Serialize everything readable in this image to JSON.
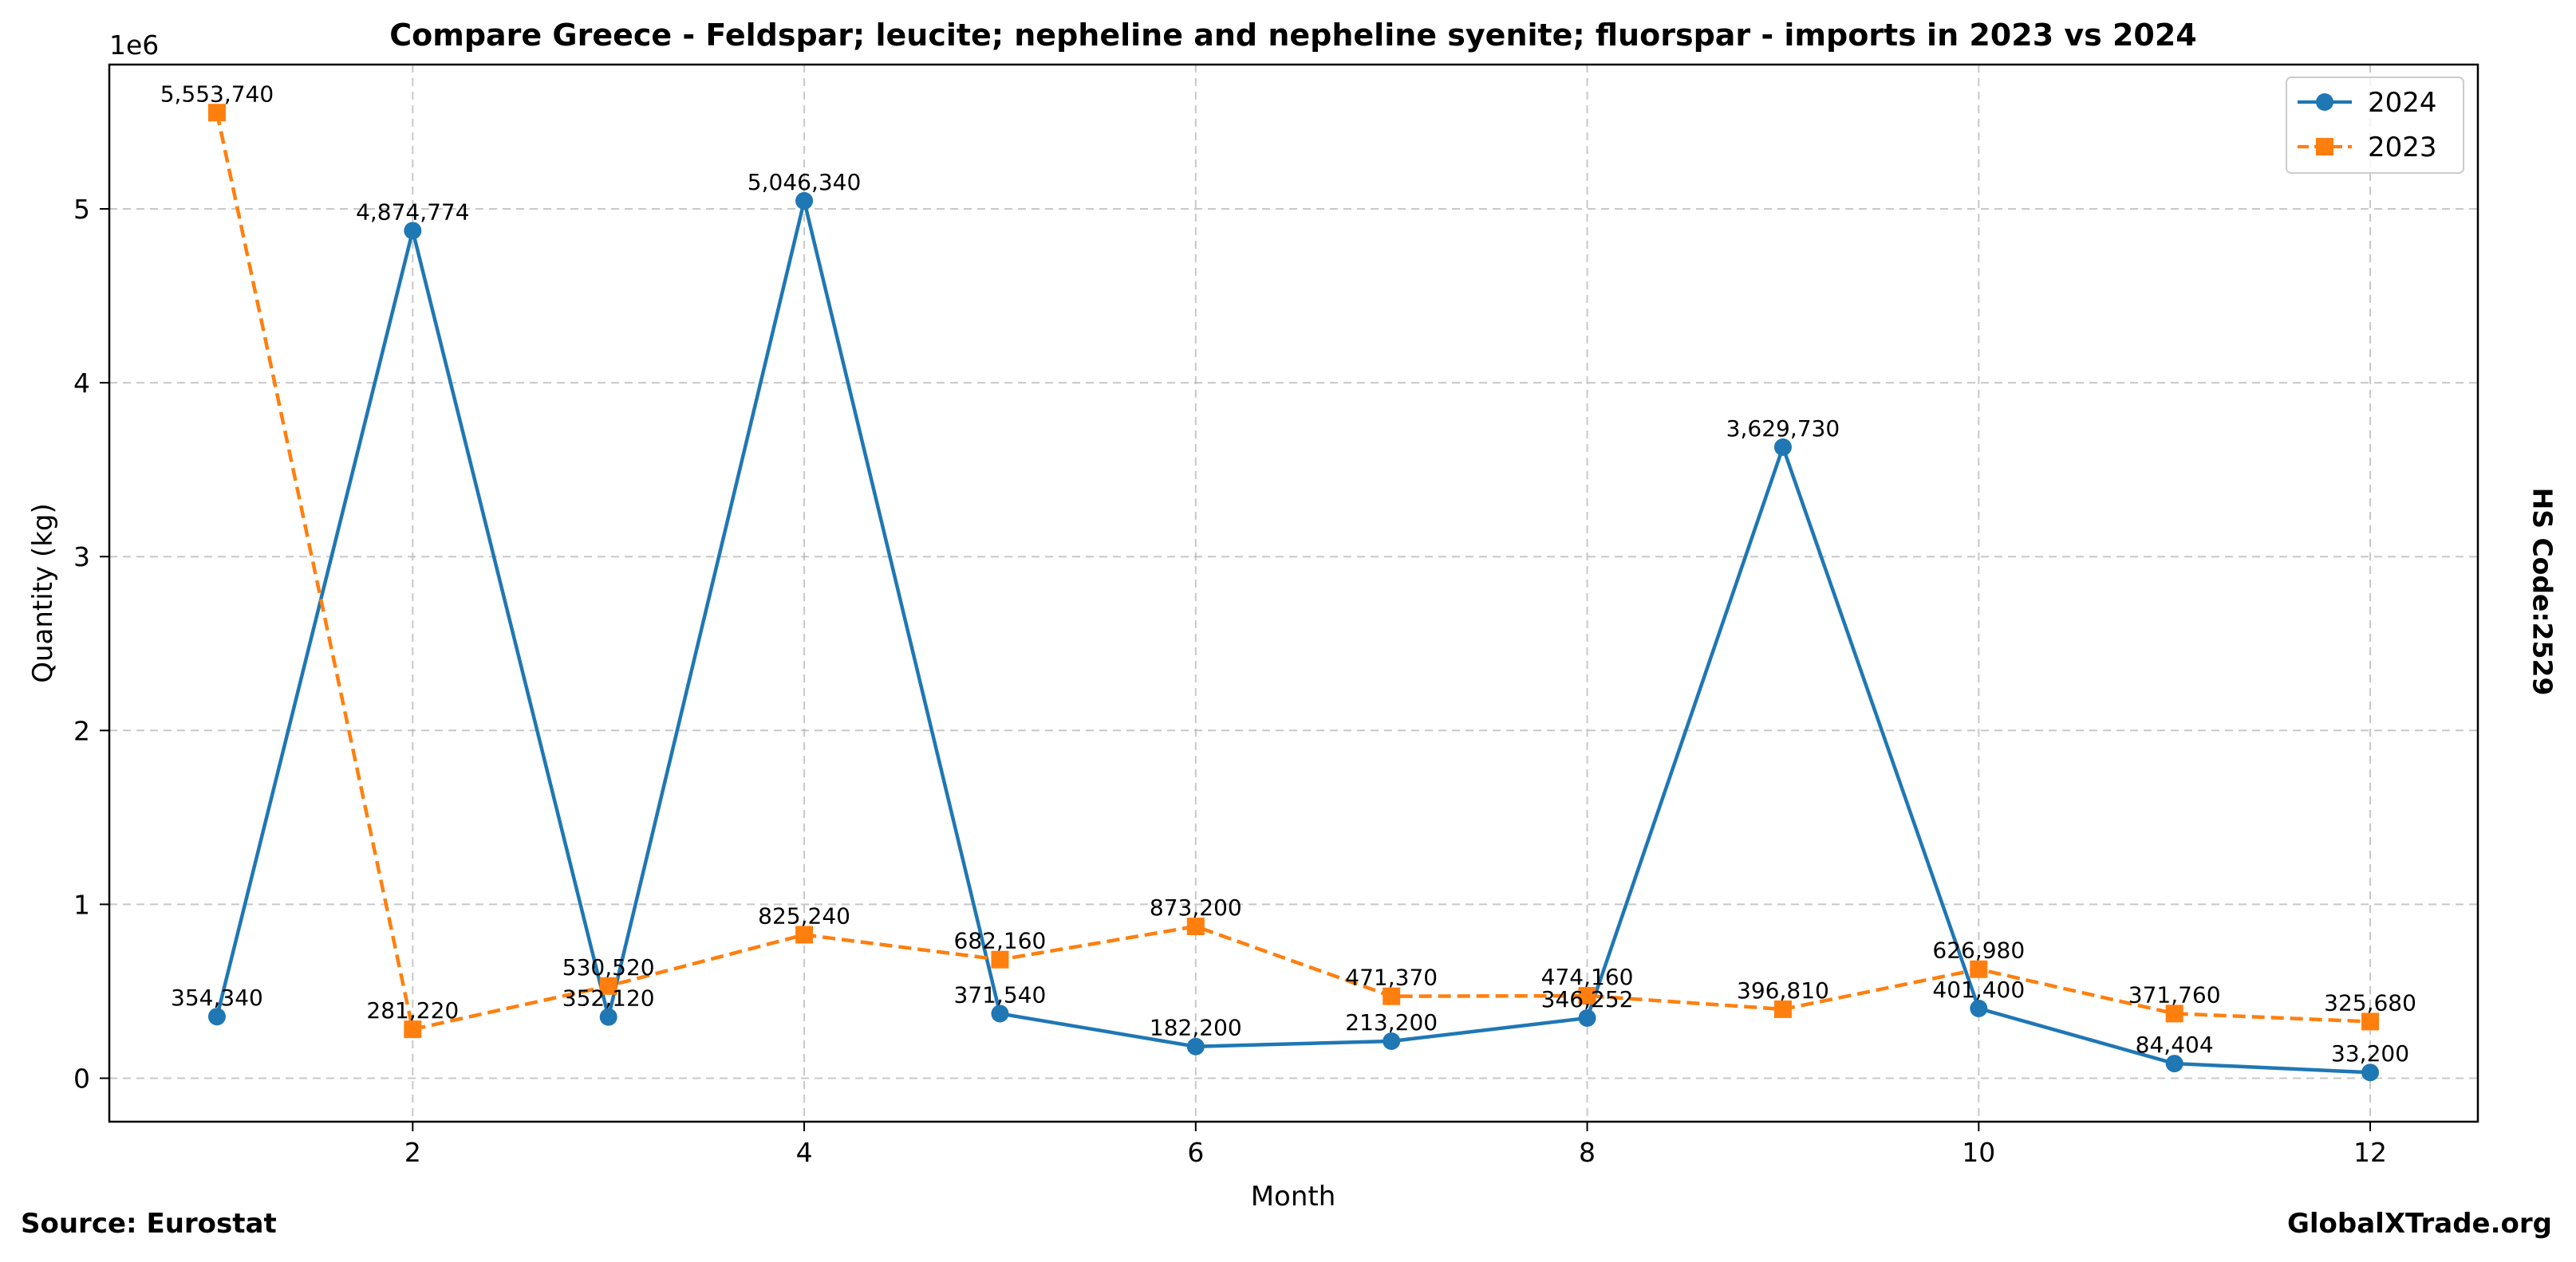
{
  "chart_data": {
    "type": "line",
    "title": "Compare Greece - Feldspar; leucite; nepheline and nepheline syenite; fluorspar - imports in 2023 vs 2024",
    "xlabel": "Month",
    "ylabel": "Quantity (kg)",
    "y_scale_label": "1e6",
    "xlim": [
      0.45,
      12.55
    ],
    "ylim": [
      -250000,
      5830000
    ],
    "xticks": [
      2,
      4,
      6,
      8,
      10,
      12
    ],
    "yticks": [
      0,
      1,
      2,
      3,
      4,
      5
    ],
    "grid": true,
    "legend_position": "top-right",
    "x": [
      1,
      2,
      3,
      4,
      5,
      6,
      7,
      8,
      9,
      10,
      11,
      12
    ],
    "series": [
      {
        "name": "2024",
        "color": "#1f77b4",
        "marker": "circle",
        "line_style": "solid",
        "values": [
          354340,
          4874774,
          352120,
          5046340,
          371540,
          182200,
          213200,
          346252,
          3629730,
          401400,
          84404,
          33200
        ],
        "labels": [
          "354,340",
          "4,874,774",
          "352,120",
          "5,046,340",
          "371,540",
          "182,200",
          "213,200",
          "346,252",
          "3,629,730",
          "401,400",
          "84,404",
          "33,200"
        ]
      },
      {
        "name": "2023",
        "color": "#ff7f0e",
        "marker": "square",
        "line_style": "dashed",
        "values": [
          5553740,
          281220,
          530520,
          825240,
          682160,
          873200,
          471370,
          474160,
          396810,
          626980,
          371760,
          325680
        ],
        "labels": [
          "5,553,740",
          "281,220",
          "530,520",
          "825,240",
          "682,160",
          "873,200",
          "471,370",
          "474,160",
          "396,810",
          "626,980",
          "371,760",
          "325,680"
        ]
      }
    ]
  },
  "side_label": "HS Code:2529",
  "footer": {
    "source": "Source: Eurostat",
    "brand": "GlobalXTrade.org"
  }
}
